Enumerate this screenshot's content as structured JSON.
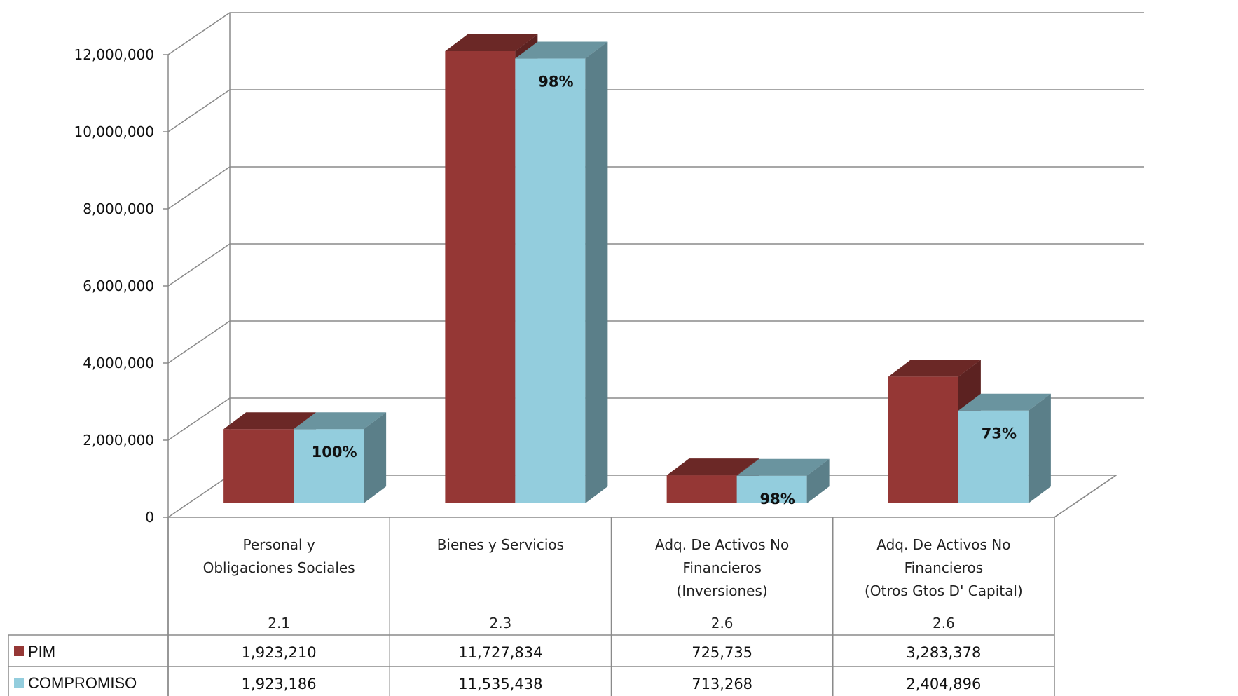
{
  "chart_data": {
    "type": "bar",
    "style": "3d-clustered-column-with-data-table",
    "title": "",
    "ylim": [
      0,
      12000000
    ],
    "ytick_step": 2000000,
    "yticks": [
      "0",
      "2,000,000",
      "4,000,000",
      "6,000,000",
      "8,000,000",
      "10,000,000",
      "12,000,000"
    ],
    "grid": true,
    "legend": "in-data-table",
    "categories": [
      {
        "lines": [
          "Personal y",
          "Obligaciones Sociales"
        ],
        "code": "2.1"
      },
      {
        "lines": [
          "Bienes y Servicios"
        ],
        "code": "2.3"
      },
      {
        "lines": [
          "Adq. De Activos No",
          "Financieros",
          "(Inversiones)"
        ],
        "code": "2.6"
      },
      {
        "lines": [
          "Adq. De Activos No",
          "Financieros",
          "(Otros Gtos D' Capital)"
        ],
        "code": "2.6"
      }
    ],
    "series": [
      {
        "name": "PIM",
        "color": "#953735",
        "values": [
          1923210,
          11727834,
          725735,
          3283378
        ],
        "value_labels": [
          "1,923,210",
          "11,727,834",
          "725,735",
          "3,283,378"
        ]
      },
      {
        "name": "COMPROMISO",
        "color": "#93CDDD",
        "values": [
          1923186,
          11535438,
          713268,
          2404896
        ],
        "value_labels": [
          "1,923,186",
          "11,535,438",
          "713,268",
          "2,404,896"
        ]
      }
    ],
    "bar_annotations": [
      "100%",
      "98%",
      "98%",
      "73%"
    ]
  }
}
